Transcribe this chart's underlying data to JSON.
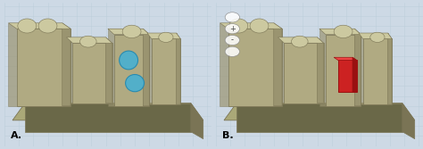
{
  "fig_width": 4.74,
  "fig_height": 1.67,
  "dpi": 100,
  "bg_color": "#cdd9e5",
  "grid_color": "#b8ccd8",
  "grid_color2": "#ffffff",
  "tooth_base": "#b0aa82",
  "tooth_mid": "#9a9470",
  "tooth_dark": "#7a7455",
  "tooth_light": "#ccc9a0",
  "base_top": "#aaa878",
  "base_side": "#6a6848",
  "blue1": "#4ab0d0",
  "blue2": "#2288b0",
  "red1": "#cc2222",
  "red2": "#991111",
  "label_A": "A.",
  "label_B": "B.",
  "label_fontsize": 8,
  "nav_color": "#888888",
  "white": "#ffffff"
}
